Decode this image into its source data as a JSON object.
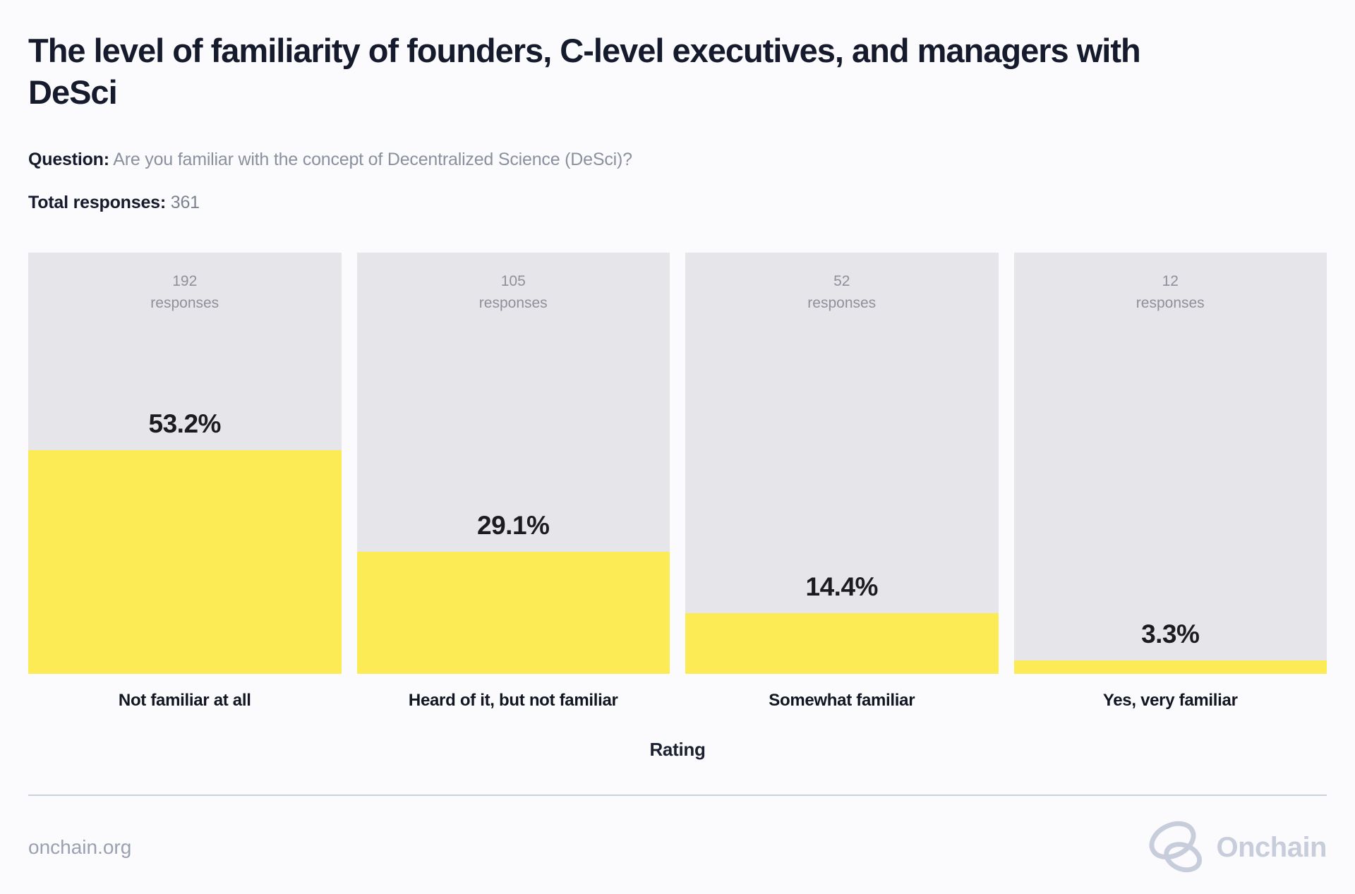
{
  "header": {
    "title": "The level of familiarity of founders, C-level executives, and managers with DeSci",
    "question_label": "Question:",
    "question_text": "Are you familiar with the concept of Decentralized Science (DeSci)?",
    "total_label": "Total responses:",
    "total_value": "361"
  },
  "chart": {
    "xlabel": "Rating",
    "bars": [
      {
        "count": "192",
        "unit": "responses",
        "percent_label": "53.2%",
        "percent": 53.2,
        "category": "Not familiar at all"
      },
      {
        "count": "105",
        "unit": "responses",
        "percent_label": "29.1%",
        "percent": 29.1,
        "category": "Heard of it, but not familiar"
      },
      {
        "count": "52",
        "unit": "responses",
        "percent_label": "14.4%",
        "percent": 14.4,
        "category": "Somewhat familiar"
      },
      {
        "count": "12",
        "unit": "responses",
        "percent_label": "3.3%",
        "percent": 3.3,
        "category": "Yes, very familiar"
      }
    ]
  },
  "chart_data": {
    "type": "bar",
    "title": "The level of familiarity of founders, C-level executives, and managers with DeSci",
    "question": "Are you familiar with the concept of Decentralized Science (DeSci)?",
    "total_responses": 361,
    "categories": [
      "Not familiar at all",
      "Heard of it, but not familiar",
      "Somewhat familiar",
      "Yes, very familiar"
    ],
    "series": [
      {
        "name": "responses",
        "values": [
          192,
          105,
          52,
          12
        ]
      },
      {
        "name": "percent_of_total",
        "values": [
          53.2,
          29.1,
          14.4,
          3.3
        ]
      }
    ],
    "xlabel": "Rating",
    "ylabel": "",
    "ylim": [
      0,
      100
    ],
    "grid": false,
    "legend": false,
    "bar_fill_color": "#FCEB55",
    "bar_track_color": "#E6E5EA"
  },
  "footer": {
    "site": "onchain.org",
    "brand": "Onchain",
    "logo_icon": "onchain-knot-icon"
  },
  "colors": {
    "background": "#FBFBFD",
    "title_text": "#151B2C",
    "muted_text": "#8A909D",
    "count_text": "#90909A",
    "percent_text": "#1B1B20",
    "bar_fill": "#FCEB55",
    "bar_track": "#E6E5EA",
    "divider": "#CBD1DC",
    "footer_text": "#99A1B1",
    "logo": "#C7CDDA"
  }
}
